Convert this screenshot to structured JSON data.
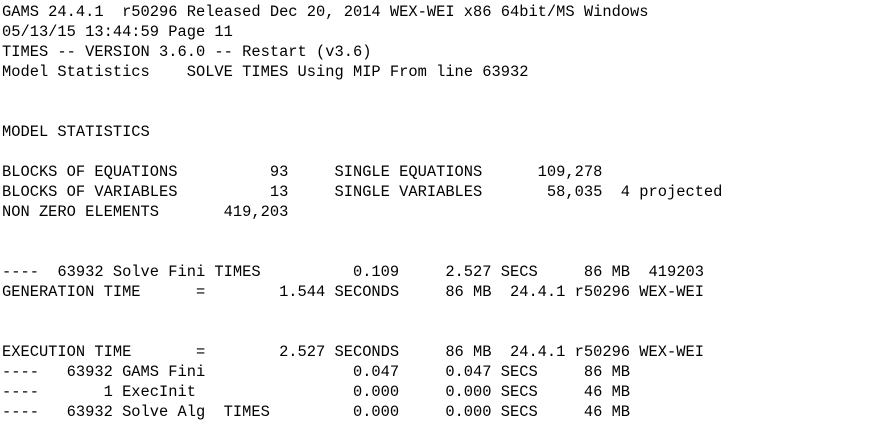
{
  "document": {
    "lines": [
      "GAMS 24.4.1  r50296 Released Dec 20, 2014 WEX-WEI x86 64bit/MS Windows",
      "05/13/15 13:44:59 Page 11",
      "TIMES -- VERSION 3.6.0 -- Restart (v3.6)",
      "Model Statistics    SOLVE TIMES Using MIP From line 63932",
      "",
      "",
      "MODEL STATISTICS",
      "",
      "BLOCKS OF EQUATIONS          93     SINGLE EQUATIONS      109,278",
      "BLOCKS OF VARIABLES          13     SINGLE VARIABLES       58,035  4 projected",
      "NON ZERO ELEMENTS       419,203",
      "",
      "",
      "----  63932 Solve Fini TIMES          0.109     2.527 SECS     86 MB  419203",
      "GENERATION TIME      =        1.544 SECONDS     86 MB  24.4.1 r50296 WEX-WEI",
      "",
      "",
      "EXECUTION TIME       =        2.527 SECONDS     86 MB  24.4.1 r50296 WEX-WEI",
      "----   63932 GAMS Fini                0.047     0.047 SECS     86 MB",
      "----       1 ExecInit                 0.000     0.000 SECS     46 MB",
      "----   63932 Solve Alg  TIMES         0.000     0.000 SECS     46 MB"
    ]
  }
}
